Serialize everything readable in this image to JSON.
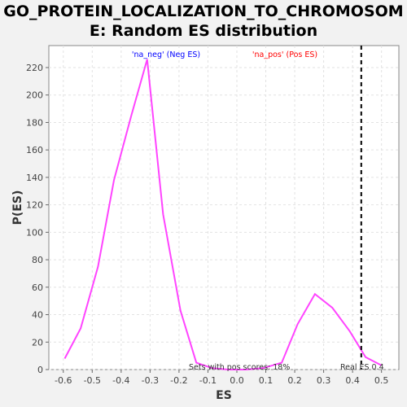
{
  "chart_data": {
    "type": "line",
    "title_lines": [
      "GO_PROTEIN_LOCALIZATION_TO_CHROMOSOM",
      "E: Random ES distribution"
    ],
    "xlabel": "ES",
    "ylabel": "P(ES)",
    "xlim": [
      -0.65,
      0.56
    ],
    "ylim": [
      0,
      236
    ],
    "xticks": [
      -0.6,
      -0.5,
      -0.4,
      -0.3,
      -0.2,
      -0.1,
      0.0,
      0.1,
      0.2,
      0.3,
      0.4,
      0.5
    ],
    "xtick_labels": [
      "-0.6",
      "-0.5",
      "-0.4",
      "-0.3",
      "-0.2",
      "-0.1",
      "0.0",
      "0.1",
      "0.2",
      "0.3",
      "0.4",
      "0.5"
    ],
    "yticks": [
      0,
      20,
      40,
      60,
      80,
      100,
      120,
      140,
      160,
      180,
      200,
      220
    ],
    "ytick_labels": [
      "0",
      "20",
      "40",
      "60",
      "80",
      "100",
      "120",
      "140",
      "160",
      "180",
      "200",
      "220"
    ],
    "grid": true,
    "series": [
      {
        "color": "#ff44ff",
        "x": [
          -0.595,
          -0.54,
          -0.48,
          -0.425,
          -0.365,
          -0.31,
          -0.255,
          -0.195,
          -0.14,
          -0.085,
          -0.03,
          0.03,
          0.09,
          0.155,
          0.21,
          0.27,
          0.33,
          0.39,
          0.445,
          0.5
        ],
        "y": [
          8,
          30,
          75,
          138,
          185,
          226,
          113,
          43,
          5,
          1,
          0,
          0,
          1,
          5,
          33,
          55,
          45,
          28,
          9,
          3
        ]
      }
    ],
    "real_es": 0.43,
    "annotations": {
      "neg_label": "'na_neg' (Neg ES)",
      "neg_color": "#0000ff",
      "pos_label": "'na_pos' (Pos ES)",
      "pos_color": "#ff0000",
      "pos_scores": "Sets with pos scores: 18%",
      "real_es": "Real ES 0.4"
    }
  }
}
